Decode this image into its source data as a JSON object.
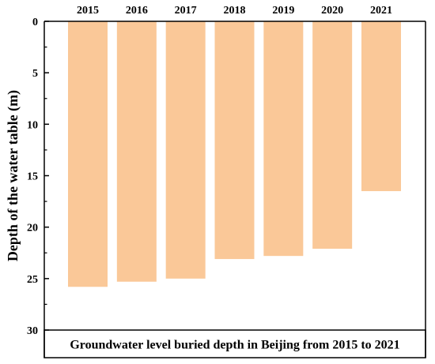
{
  "chart_data": {
    "type": "bar",
    "orientation": "vertical-inverted",
    "categories": [
      "2015",
      "2016",
      "2017",
      "2018",
      "2019",
      "2020",
      "2021"
    ],
    "values": [
      25.8,
      25.3,
      25.0,
      23.1,
      22.8,
      22.1,
      16.5
    ],
    "ylabel": "Depth of the water table (m)",
    "ylim": [
      0,
      30
    ],
    "yticks": [
      0,
      5,
      10,
      15,
      20,
      25,
      30
    ],
    "bar_color": "#FAC898",
    "category_axis_position": "top",
    "grid": false,
    "caption": "Groundwater level buried depth in Beijing from 2015 to 2021"
  }
}
